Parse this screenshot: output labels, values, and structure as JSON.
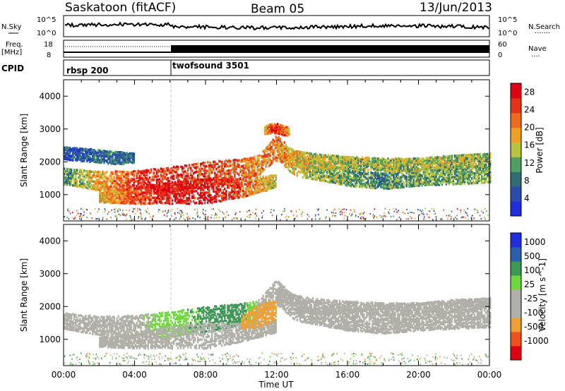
{
  "header": {
    "station": "Saskatoon (fitACF)",
    "beam": "Beam 05",
    "date": "13/Jun/2013"
  },
  "nsky_panel": {
    "left_label": "N.Sky",
    "left_ticks": [
      "10^5",
      "10^0"
    ],
    "right_ticks": [
      "10^5",
      "10^0"
    ],
    "right_label": "N.Search",
    "right_legend": "......."
  },
  "freq_panel": {
    "left_label_1": "Freq.",
    "left_label_2": "[MHz]",
    "left_ticks": [
      "18",
      "8"
    ],
    "right_ticks": [
      "60",
      "0"
    ],
    "right_label": "Nave",
    "right_legend": "...."
  },
  "cpid_panel": {
    "label": "CPID",
    "modes": [
      {
        "name": "rbsp 200",
        "start_hour": 0
      },
      {
        "name": "twofsound 3501",
        "start_hour": 6
      }
    ]
  },
  "colors": {
    "power_scale": [
      "#1f2fe0",
      "#2a4bb0",
      "#2e6e73",
      "#4f9f62",
      "#b8c43a",
      "#f0a020",
      "#f06a1c",
      "#e83218",
      "#e00010"
    ],
    "velocity_scale": [
      "#e00010",
      "#f0501c",
      "#f0a030",
      "#b0b0a8",
      "#b0b0a8",
      "#6ed83c",
      "#3a9a54",
      "#2a5fb0",
      "#1f2fe0"
    ]
  },
  "chart_data": [
    {
      "type": "heatmap",
      "title": "",
      "xlabel": "",
      "ylabel": "Slant Range [km]",
      "xlim": [
        0,
        24
      ],
      "ylim": [
        200,
        4500
      ],
      "yticks": [
        "1000",
        "2000",
        "3000",
        "4000"
      ],
      "colorbar": {
        "label": "Power [dB]",
        "ticks": [
          "4",
          "8",
          "12",
          "16",
          "20",
          "24",
          "28"
        ],
        "range": [
          0,
          30
        ]
      },
      "bands": [
        {
          "name": "",
          "x": [
            0,
            2,
            4,
            6,
            8,
            10,
            11,
            12,
            13,
            14,
            16,
            18,
            20,
            22,
            24
          ],
          "center_km": [
            1550,
            1400,
            1380,
            1450,
            1600,
            1750,
            1900,
            2450,
            1900,
            1750,
            1500,
            1400,
            1500,
            1550,
            1600
          ],
          "width_km": [
            250,
            300,
            350,
            400,
            400,
            350,
            300,
            400,
            350,
            300,
            250,
            250,
            250,
            250,
            250
          ],
          "power_db": [
            10,
            18,
            26,
            26,
            24,
            22,
            20,
            22,
            16,
            14,
            12,
            10,
            12,
            12,
            12
          ]
        },
        {
          "name": "",
          "x": [
            2,
            4,
            6,
            8,
            10,
            12
          ],
          "center_km": [
            900,
            950,
            1050,
            1100,
            1200,
            1400
          ],
          "width_km": [
            150,
            250,
            350,
            400,
            300,
            200
          ],
          "power_db": [
            16,
            24,
            28,
            28,
            24,
            14
          ]
        },
        {
          "name": "",
          "x": [
            12,
            13,
            14,
            16,
            18,
            20,
            22,
            24
          ],
          "center_km": [
            2300,
            2100,
            2000,
            1950,
            1900,
            1900,
            2000,
            2050
          ],
          "width_km": [
            300,
            250,
            250,
            200,
            200,
            200,
            200,
            200
          ],
          "power_db": [
            20,
            18,
            16,
            14,
            14,
            14,
            14,
            14
          ]
        },
        {
          "name": "",
          "x": [
            0,
            1,
            2,
            3,
            4
          ],
          "center_km": [
            2250,
            2200,
            2150,
            2100,
            2100
          ],
          "width_km": [
            200,
            200,
            200,
            200,
            150
          ],
          "power_db": [
            6,
            6,
            8,
            8,
            8
          ]
        },
        {
          "name": "",
          "x": [
            11.3,
            11.7,
            12.0,
            12.3,
            12.7
          ],
          "center_km": [
            2950,
            3000,
            3000,
            2950,
            2900
          ],
          "width_km": [
            120,
            150,
            150,
            150,
            120
          ],
          "power_db": [
            18,
            24,
            26,
            24,
            18
          ]
        }
      ]
    },
    {
      "type": "heatmap",
      "title": "",
      "xlabel": "Time UT",
      "ylabel": "Slant Range [km]",
      "xlim": [
        0,
        24
      ],
      "ylim": [
        200,
        4500
      ],
      "xticks": [
        "00:00",
        "04:00",
        "08:00",
        "12:00",
        "16:00",
        "20:00",
        "00:00"
      ],
      "yticks": [
        "1000",
        "2000",
        "3000",
        "4000"
      ],
      "colorbar": {
        "label": "Velocity [m s^-1]",
        "ticks": [
          "1000",
          "500",
          "100",
          "25",
          "-25",
          "-100",
          "-500",
          "-1000"
        ]
      },
      "bands": [
        {
          "name": "",
          "x": [
            0,
            2,
            4,
            6,
            8,
            10,
            11,
            12,
            13,
            14,
            16,
            18,
            20,
            22,
            24
          ],
          "center_km": [
            1550,
            1400,
            1380,
            1450,
            1600,
            1750,
            1900,
            2450,
            1900,
            1750,
            1500,
            1400,
            1500,
            1550,
            1600
          ],
          "width_km": [
            250,
            300,
            350,
            400,
            400,
            350,
            300,
            400,
            350,
            300,
            250,
            250,
            250,
            250,
            250
          ],
          "velocity_ms": [
            0,
            0,
            0,
            60,
            120,
            150,
            0,
            0,
            0,
            0,
            0,
            0,
            0,
            0,
            0
          ]
        },
        {
          "name": "",
          "x": [
            2,
            4,
            6,
            8,
            10,
            12
          ],
          "center_km": [
            900,
            950,
            1050,
            1100,
            1200,
            1400
          ],
          "width_km": [
            150,
            250,
            350,
            400,
            300,
            200
          ],
          "velocity_ms": [
            0,
            -60,
            0,
            0,
            0,
            0
          ]
        },
        {
          "name": "",
          "x": [
            10,
            10.5,
            11,
            11.5,
            12
          ],
          "center_km": [
            1500,
            1600,
            1700,
            1800,
            1850
          ],
          "width_km": [
            200,
            300,
            350,
            350,
            300
          ],
          "velocity_ms": [
            -150,
            -200,
            -300,
            -300,
            -200
          ]
        },
        {
          "name": "",
          "x": [
            12,
            13,
            14,
            16,
            18,
            20,
            22,
            24
          ],
          "center_km": [
            2300,
            2100,
            2000,
            1950,
            1900,
            1900,
            2000,
            2050
          ],
          "width_km": [
            300,
            250,
            250,
            200,
            200,
            200,
            200,
            200
          ],
          "velocity_ms": [
            0,
            0,
            0,
            0,
            0,
            0,
            0,
            0
          ]
        }
      ]
    }
  ]
}
